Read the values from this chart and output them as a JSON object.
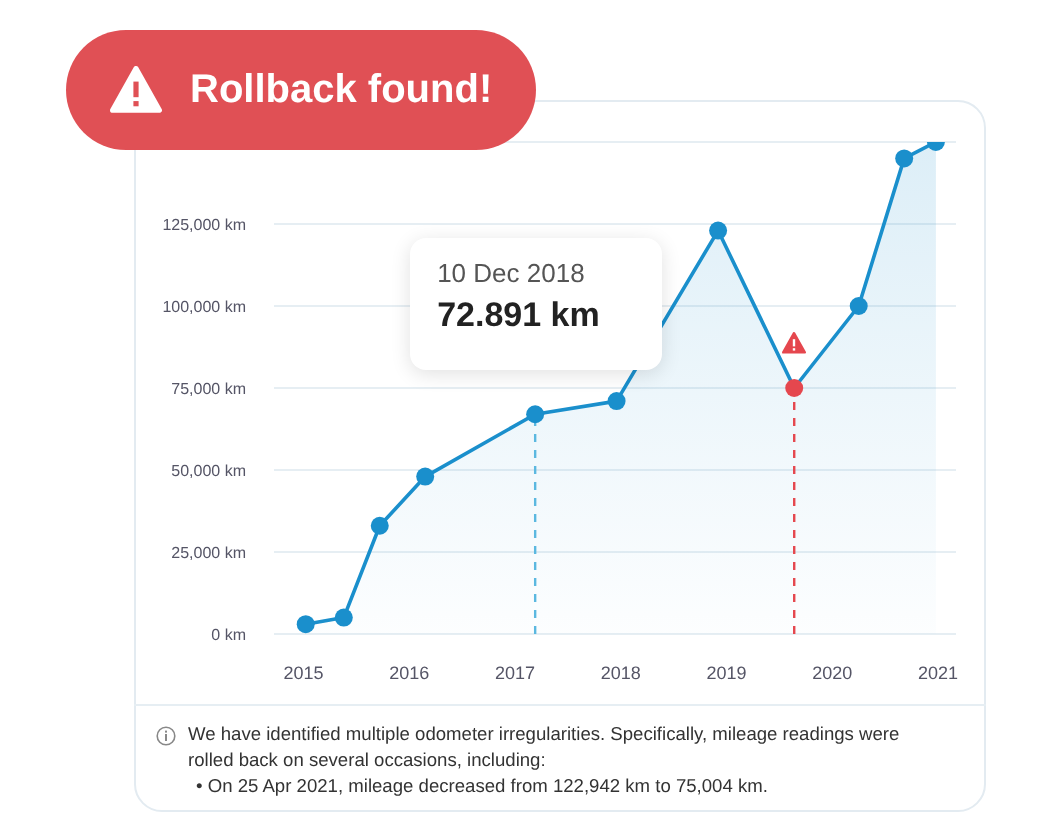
{
  "chart_data": {
    "type": "area",
    "title": "Rollback found!",
    "x": [
      2015.02,
      2015.38,
      2015.72,
      2016.15,
      2017.19,
      2017.96,
      2018.92,
      2019.64,
      2020.25,
      2020.68,
      2020.98
    ],
    "series": [
      {
        "color": "#1a8fcc",
        "colors": [
          "#1a8fcc",
          "#1a8fcc",
          "#1a8fcc",
          "#1a8fcc",
          "#1a8fcc",
          "#1a8fcc",
          "#1a8fcc",
          "#e5474e",
          "#1a8fcc",
          "#1a8fcc",
          "#1a8fcc"
        ],
        "values": [
          3000,
          5000,
          33000,
          48000,
          67000,
          71000,
          123000,
          75000,
          100000,
          145000,
          150000
        ]
      }
    ],
    "xlim": [
      2014.72,
      2021.17
    ],
    "xticks": [
      2015,
      2016,
      2017,
      2018,
      2019,
      2020,
      2021
    ],
    "ylim": [
      0,
      150000
    ],
    "yticks": [
      {
        "value": 0,
        "label": "0 km"
      },
      {
        "value": 25000,
        "label": "25,000 km"
      },
      {
        "value": 50000,
        "label": "50,000 km"
      },
      {
        "value": 75000,
        "label": "75,000 km"
      },
      {
        "value": 100000,
        "label": "100,000 km"
      },
      {
        "value": 125000,
        "label": "125,000 km"
      },
      {
        "value": 150000,
        "label": null
      }
    ],
    "grid": "y",
    "marker": "circle",
    "line_style": "solid",
    "ref_lines": [
      {
        "axis": "x",
        "value": 2017.19,
        "label": null,
        "color": "#5bb8e0",
        "line_style": "dashed"
      },
      {
        "axis": "x",
        "value": 2019.64,
        "label": null,
        "color": "#e5474e",
        "line_style": "dashed"
      }
    ],
    "annotations": [
      {
        "text": "10 Dec 2018\n72.891 km",
        "x": 2017.19,
        "y": 67000
      },
      "We have identified multiple odometer irregularities. Specifically, mileage readings were rolled back on several occasions, including:",
      "• On 25 Apr 2021, mileage decreased from 122,942 km to 75,004 km."
    ]
  }
}
